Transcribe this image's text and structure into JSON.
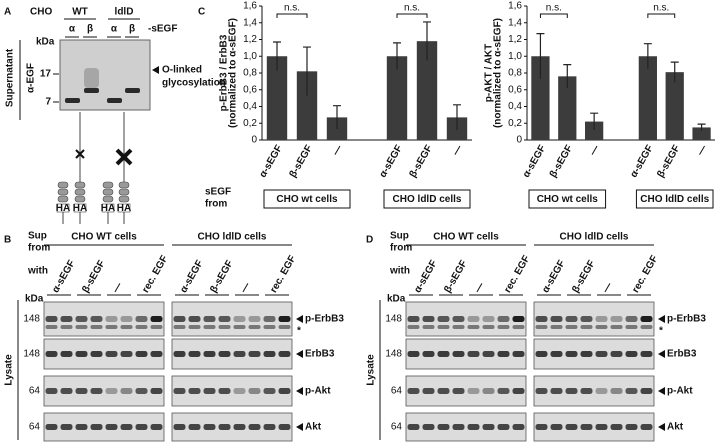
{
  "panel_a": {
    "letter": "A",
    "cho": "CHO",
    "strains": [
      "WT",
      "ldlD"
    ],
    "lanes": [
      "α",
      "β"
    ],
    "treatment": "-sEGF",
    "kda": "kDa",
    "markers": [
      17,
      7
    ],
    "annotation": [
      "O-linked",
      "glycosylation"
    ],
    "side": [
      "Supernatant",
      "α-EGF"
    ],
    "ha": "HA"
  },
  "panel_c": {
    "letter": "C",
    "row_label": [
      "sEGF",
      "from"
    ]
  },
  "chart_data": [
    {
      "type": "bar",
      "ylabel": "p-ErbB3 / ErbB3",
      "ylabel_note": "(normalized to α-sEGF)",
      "categories": [
        "α-sEGF",
        "β-sEGF",
        "—",
        "α-sEGF",
        "β-sEGF",
        "—"
      ],
      "groups": [
        "CHO wt cells",
        "CHO ldlD cells"
      ],
      "values": [
        1.0,
        0.82,
        0.27,
        1.0,
        1.18,
        0.27
      ],
      "errors": [
        0.17,
        0.29,
        0.14,
        0.16,
        0.23,
        0.15
      ],
      "color": "#3c3c3c",
      "annotations": [
        "n.s.",
        "n.s."
      ],
      "ylim": [
        0,
        1.6
      ],
      "yticks": [
        0,
        {
          "value": 0.2,
          "label": "0,2"
        },
        {
          "value": 0.4,
          "label": "0,4"
        },
        {
          "value": 0.6,
          "label": "0,6"
        },
        {
          "value": 0.8,
          "label": "0,8"
        },
        {
          "value": 1.0,
          "label": "1,0"
        },
        {
          "value": 1.2,
          "label": "1,2"
        },
        {
          "value": 1.4,
          "label": "1,4"
        },
        {
          "value": 1.6,
          "label": "1,6"
        }
      ]
    },
    {
      "type": "bar",
      "ylabel": "p-AKT / AKT",
      "ylabel_note": "(normalized to α-sEGF)",
      "categories": [
        "α-sEGF",
        "β-sEGF",
        "—",
        "α-sEGF",
        "β-sEGF",
        "—"
      ],
      "groups": [
        "CHO wt cells",
        "CHO ldlD cells"
      ],
      "values": [
        1.0,
        0.76,
        0.22,
        1.0,
        0.81,
        0.15
      ],
      "errors": [
        0.27,
        0.14,
        0.1,
        0.15,
        0.12,
        0.04
      ],
      "color": "#3c3c3c",
      "annotations": [
        "n.s.",
        "n.s."
      ],
      "ylim": [
        0,
        1.6
      ],
      "yticks": [
        0,
        {
          "value": 0.2,
          "label": "0,2"
        },
        {
          "value": 0.4,
          "label": "0,4"
        },
        {
          "value": 0.6,
          "label": "0,6"
        },
        {
          "value": 0.8,
          "label": "0,8"
        },
        {
          "value": 1.0,
          "label": "1,0"
        },
        {
          "value": 1.2,
          "label": "1,2"
        },
        {
          "value": 1.4,
          "label": "1,4"
        },
        {
          "value": 1.6,
          "label": "1,6"
        }
      ]
    }
  ],
  "panel_b": {
    "letter": "B",
    "sup": [
      "Sup",
      "from"
    ],
    "cell_groups": [
      "CHO WT cells",
      "CHO ldlD cells"
    ],
    "with": "with",
    "lanes": [
      "α-sEGF",
      "β-sEGF",
      "—",
      "rec. EGF"
    ],
    "kda": "kDa",
    "markers": [
      148,
      148,
      64,
      64
    ],
    "proteins": [
      "p-ErbB3",
      "ErbB3",
      "p-Akt",
      "Akt"
    ],
    "asterisk": "*",
    "side": "Lysate"
  },
  "panel_d": {
    "letter": "D",
    "sup": [
      "Sup",
      "from"
    ],
    "cell_groups": [
      "CHO WT cells",
      "CHO ldlD cells"
    ],
    "with": "with",
    "lanes": [
      "α-sEGF",
      "β-sEGF",
      "—",
      "rec. EGF"
    ],
    "kda": "kDa",
    "markers": [
      148,
      148,
      64,
      64
    ],
    "proteins": [
      "p-ErbB3",
      "ErbB3",
      "p-Akt",
      "Akt"
    ],
    "asterisk": "*",
    "side": "Lysate"
  }
}
